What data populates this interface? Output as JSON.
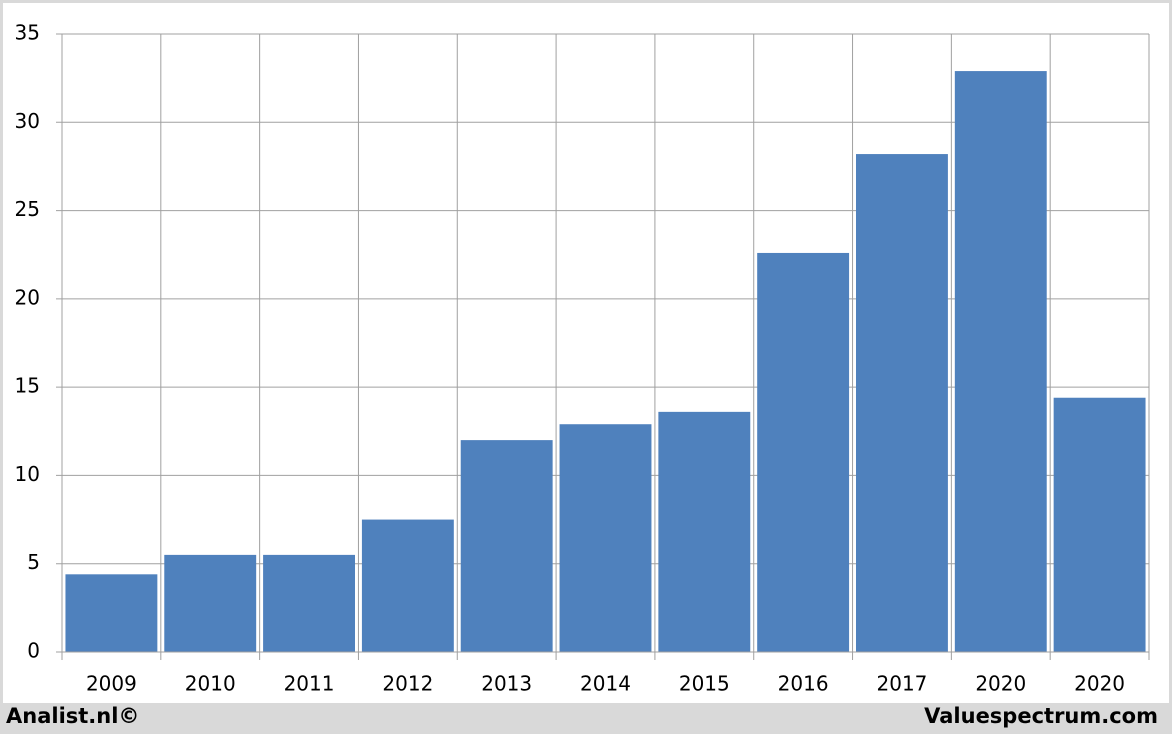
{
  "chart_data": {
    "type": "bar",
    "categories": [
      "2009",
      "2010",
      "2011",
      "2012",
      "2013",
      "2014",
      "2015",
      "2016",
      "2017",
      "2020",
      "2020"
    ],
    "values": [
      4.4,
      5.5,
      5.5,
      7.5,
      12.0,
      12.9,
      13.6,
      22.6,
      28.2,
      32.9,
      14.4
    ],
    "color": "#4f81bd",
    "ylim": [
      0,
      35
    ],
    "yticks": [
      0,
      5,
      10,
      15,
      20,
      25,
      30,
      35
    ],
    "grid": true,
    "credits": [
      "Analist.nl©",
      "Valuespectrum.com"
    ]
  }
}
